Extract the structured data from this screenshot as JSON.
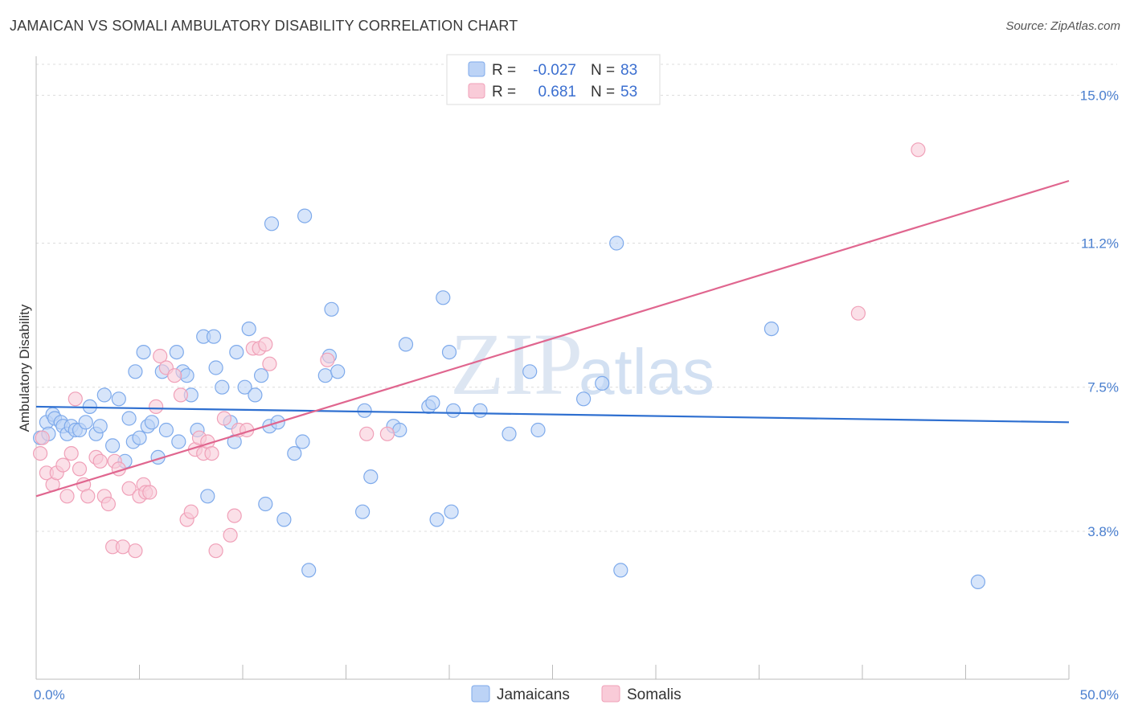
{
  "header": {
    "title": "JAMAICAN VS SOMALI AMBULATORY DISABILITY CORRELATION CHART",
    "source": "Source: ZipAtlas.com"
  },
  "watermark": {
    "zip": "ZIP",
    "atlas": "atlas"
  },
  "legend": {
    "r_label": "R =",
    "n_label": "N =",
    "rows": [
      {
        "r": "-0.027",
        "n": "83",
        "color": "#7eaaeb",
        "fill": "#bcd3f6"
      },
      {
        "r": "0.681",
        "n": "53",
        "color": "#f0a0b8",
        "fill": "#f9cbd8"
      }
    ]
  },
  "bottom_legend": [
    "Jamaicans",
    "Somalis"
  ],
  "chart_data": {
    "type": "scatter",
    "title": "JAMAICAN VS SOMALI AMBULATORY DISABILITY CORRELATION CHART",
    "xlabel": "",
    "ylabel": "Ambulatory Disability",
    "xlim": [
      0,
      50
    ],
    "ylim": [
      0,
      16
    ],
    "x_tick_labels": [
      "0.0%",
      "50.0%"
    ],
    "y_ticks": [
      3.8,
      7.5,
      11.2,
      15.0
    ],
    "y_tick_labels": [
      "3.8%",
      "7.5%",
      "11.2%",
      "15.0%"
    ],
    "grid": true,
    "legend_position": "top-center",
    "series": [
      {
        "name": "Jamaicans",
        "color": "#7eaaeb",
        "fill": "#bcd3f6",
        "line_color": "#2e6fd0",
        "trend": [
          [
            0,
            7.0
          ],
          [
            50,
            6.6
          ]
        ],
        "points": [
          [
            0.2,
            6.2
          ],
          [
            0.5,
            6.6
          ],
          [
            0.6,
            6.3
          ],
          [
            0.8,
            6.8
          ],
          [
            0.9,
            6.7
          ],
          [
            1.2,
            6.6
          ],
          [
            1.3,
            6.5
          ],
          [
            1.5,
            6.3
          ],
          [
            1.7,
            6.5
          ],
          [
            1.9,
            6.4
          ],
          [
            2.1,
            6.4
          ],
          [
            2.4,
            6.6
          ],
          [
            2.6,
            7.0
          ],
          [
            2.9,
            6.3
          ],
          [
            3.1,
            6.5
          ],
          [
            3.3,
            7.3
          ],
          [
            3.7,
            6.0
          ],
          [
            4.0,
            7.2
          ],
          [
            4.3,
            5.6
          ],
          [
            4.5,
            6.7
          ],
          [
            4.7,
            6.1
          ],
          [
            4.8,
            7.9
          ],
          [
            5.0,
            6.2
          ],
          [
            5.2,
            8.4
          ],
          [
            5.4,
            6.5
          ],
          [
            5.6,
            6.6
          ],
          [
            5.9,
            5.7
          ],
          [
            6.1,
            7.9
          ],
          [
            6.3,
            6.4
          ],
          [
            6.8,
            8.4
          ],
          [
            6.9,
            6.1
          ],
          [
            7.1,
            7.9
          ],
          [
            7.3,
            7.8
          ],
          [
            7.5,
            7.3
          ],
          [
            7.8,
            6.4
          ],
          [
            8.1,
            8.8
          ],
          [
            8.3,
            4.7
          ],
          [
            8.6,
            8.8
          ],
          [
            8.7,
            8.0
          ],
          [
            9.0,
            7.5
          ],
          [
            9.4,
            6.6
          ],
          [
            9.6,
            6.1
          ],
          [
            9.7,
            8.4
          ],
          [
            10.1,
            7.5
          ],
          [
            10.3,
            9.0
          ],
          [
            10.6,
            7.3
          ],
          [
            10.9,
            7.8
          ],
          [
            11.1,
            4.5
          ],
          [
            11.3,
            6.5
          ],
          [
            11.4,
            11.7
          ],
          [
            11.7,
            6.6
          ],
          [
            12.0,
            4.1
          ],
          [
            12.5,
            5.8
          ],
          [
            12.9,
            6.1
          ],
          [
            13.0,
            11.9
          ],
          [
            13.2,
            2.8
          ],
          [
            14.0,
            7.8
          ],
          [
            14.2,
            8.3
          ],
          [
            14.3,
            9.5
          ],
          [
            14.6,
            7.9
          ],
          [
            15.8,
            4.3
          ],
          [
            15.9,
            6.9
          ],
          [
            16.2,
            5.2
          ],
          [
            17.3,
            6.5
          ],
          [
            17.6,
            6.4
          ],
          [
            17.9,
            8.6
          ],
          [
            19.0,
            7.0
          ],
          [
            19.2,
            7.1
          ],
          [
            19.4,
            4.1
          ],
          [
            19.7,
            9.8
          ],
          [
            20.0,
            8.4
          ],
          [
            20.1,
            4.3
          ],
          [
            20.2,
            6.9
          ],
          [
            21.5,
            6.9
          ],
          [
            22.9,
            6.3
          ],
          [
            23.9,
            7.9
          ],
          [
            24.3,
            6.4
          ],
          [
            26.5,
            7.2
          ],
          [
            27.4,
            7.6
          ],
          [
            28.1,
            11.2
          ],
          [
            28.3,
            2.8
          ],
          [
            35.6,
            9.0
          ],
          [
            45.6,
            2.5
          ]
        ]
      },
      {
        "name": "Somalis",
        "color": "#f0a0b8",
        "fill": "#f9cbd8",
        "line_color": "#e0668f",
        "trend": [
          [
            0,
            4.7
          ],
          [
            50,
            12.8
          ]
        ],
        "points": [
          [
            0.2,
            5.8
          ],
          [
            0.3,
            6.2
          ],
          [
            0.5,
            5.3
          ],
          [
            0.8,
            5.0
          ],
          [
            1.0,
            5.3
          ],
          [
            1.3,
            5.5
          ],
          [
            1.5,
            4.7
          ],
          [
            1.7,
            5.8
          ],
          [
            1.9,
            7.2
          ],
          [
            2.1,
            5.4
          ],
          [
            2.3,
            5.0
          ],
          [
            2.5,
            4.7
          ],
          [
            2.9,
            5.7
          ],
          [
            3.1,
            5.6
          ],
          [
            3.3,
            4.7
          ],
          [
            3.5,
            4.5
          ],
          [
            3.7,
            3.4
          ],
          [
            3.8,
            5.6
          ],
          [
            4.0,
            5.4
          ],
          [
            4.2,
            3.4
          ],
          [
            4.5,
            4.9
          ],
          [
            4.8,
            3.3
          ],
          [
            5.0,
            4.7
          ],
          [
            5.2,
            5.0
          ],
          [
            5.3,
            4.8
          ],
          [
            5.5,
            4.8
          ],
          [
            5.8,
            7.0
          ],
          [
            6.0,
            8.3
          ],
          [
            6.3,
            8.0
          ],
          [
            6.7,
            7.8
          ],
          [
            7.0,
            7.3
          ],
          [
            7.3,
            4.1
          ],
          [
            7.5,
            4.3
          ],
          [
            7.7,
            5.9
          ],
          [
            7.9,
            6.2
          ],
          [
            8.1,
            5.8
          ],
          [
            8.3,
            6.1
          ],
          [
            8.5,
            5.8
          ],
          [
            8.7,
            3.3
          ],
          [
            9.1,
            6.7
          ],
          [
            9.4,
            3.7
          ],
          [
            9.6,
            4.2
          ],
          [
            9.8,
            6.4
          ],
          [
            10.2,
            6.4
          ],
          [
            10.5,
            8.5
          ],
          [
            10.8,
            8.5
          ],
          [
            11.1,
            8.6
          ],
          [
            11.3,
            8.1
          ],
          [
            14.1,
            8.2
          ],
          [
            16.0,
            6.3
          ],
          [
            17.0,
            6.3
          ],
          [
            39.8,
            9.4
          ],
          [
            42.7,
            13.6
          ]
        ]
      }
    ]
  }
}
